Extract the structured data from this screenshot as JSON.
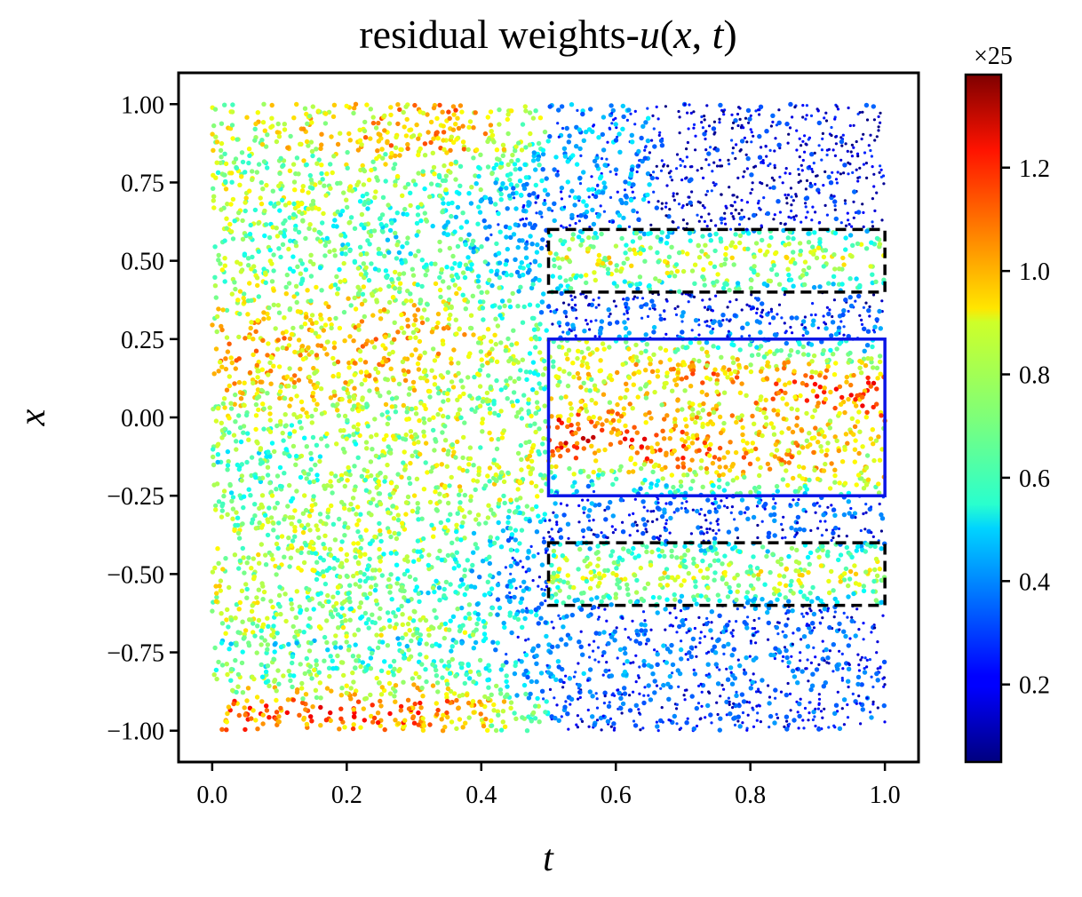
{
  "chart_data": {
    "type": "scatter",
    "title": "residual weights-u(x, t)",
    "title_parts": {
      "prefix": "residual weights-",
      "func": "u",
      "open": "(",
      "var1": "x",
      "sep": ", ",
      "var2": "t",
      "close": ")"
    },
    "xlabel": "t",
    "ylabel": "x",
    "xlim": [
      -0.05,
      1.05
    ],
    "ylim": [
      -1.1,
      1.1
    ],
    "xticks": [
      0.0,
      0.2,
      0.4,
      0.6,
      0.8,
      1.0
    ],
    "xtick_labels": [
      "0.0",
      "0.2",
      "0.4",
      "0.6",
      "0.8",
      "1.0"
    ],
    "yticks": [
      1.0,
      0.75,
      0.5,
      0.25,
      0.0,
      -0.25,
      -0.5,
      -0.75,
      -1.0
    ],
    "ytick_labels": [
      "1.00",
      "0.75",
      "0.50",
      "0.25",
      "0.00",
      "−0.25",
      "−0.50",
      "−0.75",
      "−1.00"
    ],
    "colormap": "jet",
    "colorbar": {
      "range": [
        0.05,
        1.38
      ],
      "ticks": [
        0.2,
        0.4,
        0.6,
        0.8,
        1.0,
        1.2
      ],
      "tick_labels": [
        "0.2",
        "0.4",
        "0.6",
        "0.8",
        "1.0",
        "1.2"
      ],
      "scale_label": "×25"
    },
    "points": {
      "domain_t": [
        0,
        1
      ],
      "domain_x": [
        -1,
        1
      ],
      "count": 7200
    },
    "highlight_boxes": [
      {
        "name": "upper-dashed-box",
        "t": [
          0.5,
          1.0
        ],
        "x": [
          0.4,
          0.6
        ],
        "style": "dashed",
        "color": "#000000"
      },
      {
        "name": "center-solid-box",
        "t": [
          0.5,
          1.0
        ],
        "x": [
          -0.25,
          0.25
        ],
        "style": "solid",
        "color": "#0a14e6"
      },
      {
        "name": "lower-dashed-box",
        "t": [
          0.5,
          1.0
        ],
        "x": [
          -0.6,
          -0.4
        ],
        "style": "dashed",
        "color": "#000000"
      }
    ],
    "grid": false,
    "legend": "none"
  }
}
